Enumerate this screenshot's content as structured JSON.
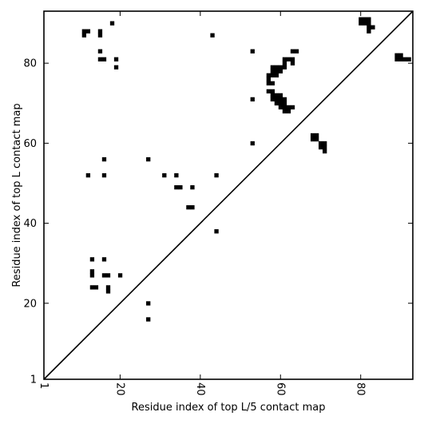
{
  "chart_data": {
    "type": "heatmap",
    "title": "",
    "xlabel": "Residue index of top L/5 contact map",
    "ylabel": "Residue index of top L contact map",
    "xlim": [
      1,
      93
    ],
    "ylim": [
      1,
      93
    ],
    "x_ticks": [
      1,
      20,
      40,
      60,
      80
    ],
    "y_ticks": [
      1,
      20,
      40,
      60,
      80
    ],
    "diagonal": true,
    "mark_color": "#000000",
    "contacts": [
      [
        11,
        88
      ],
      [
        12,
        88
      ],
      [
        11,
        87
      ],
      [
        15,
        88
      ],
      [
        15,
        87
      ],
      [
        18,
        90
      ],
      [
        15,
        83
      ],
      [
        15,
        81
      ],
      [
        16,
        81
      ],
      [
        19,
        81
      ],
      [
        19,
        79
      ],
      [
        43,
        87
      ],
      [
        53,
        83
      ],
      [
        53,
        71
      ],
      [
        53,
        60
      ],
      [
        16,
        56
      ],
      [
        27,
        56
      ],
      [
        12,
        52
      ],
      [
        16,
        52
      ],
      [
        31,
        52
      ],
      [
        34,
        52
      ],
      [
        44,
        52
      ],
      [
        34,
        49
      ],
      [
        35,
        49
      ],
      [
        38,
        49
      ],
      [
        37,
        44
      ],
      [
        38,
        44
      ],
      [
        44,
        38
      ],
      [
        13,
        31
      ],
      [
        16,
        31
      ],
      [
        13,
        28
      ],
      [
        13,
        27
      ],
      [
        16,
        27
      ],
      [
        17,
        27
      ],
      [
        20,
        27
      ],
      [
        13,
        24
      ],
      [
        14,
        24
      ],
      [
        17,
        24
      ],
      [
        17,
        23
      ],
      [
        27,
        20
      ],
      [
        27,
        16
      ],
      [
        80,
        91
      ],
      [
        81,
        91
      ],
      [
        82,
        91
      ],
      [
        80,
        90
      ],
      [
        81,
        90
      ],
      [
        82,
        90
      ],
      [
        82,
        89
      ],
      [
        83,
        89
      ],
      [
        82,
        88
      ],
      [
        89,
        82
      ],
      [
        90,
        82
      ],
      [
        89,
        81
      ],
      [
        90,
        81
      ],
      [
        91,
        81
      ],
      [
        92,
        81
      ],
      [
        63,
        83
      ],
      [
        64,
        83
      ],
      [
        61,
        81
      ],
      [
        62,
        81
      ],
      [
        63,
        81
      ],
      [
        63,
        80
      ],
      [
        61,
        80
      ],
      [
        61,
        79
      ],
      [
        58,
        79
      ],
      [
        59,
        79
      ],
      [
        60,
        79
      ],
      [
        58,
        78
      ],
      [
        59,
        78
      ],
      [
        60,
        78
      ],
      [
        57,
        77
      ],
      [
        58,
        77
      ],
      [
        59,
        77
      ],
      [
        57,
        76
      ],
      [
        57,
        75
      ],
      [
        58,
        75
      ],
      [
        57,
        73
      ],
      [
        58,
        73
      ],
      [
        58,
        72
      ],
      [
        59,
        72
      ],
      [
        60,
        72
      ],
      [
        58,
        71
      ],
      [
        59,
        71
      ],
      [
        60,
        71
      ],
      [
        61,
        71
      ],
      [
        59,
        70
      ],
      [
        60,
        70
      ],
      [
        61,
        70
      ],
      [
        60,
        69
      ],
      [
        61,
        69
      ],
      [
        62,
        69
      ],
      [
        63,
        69
      ],
      [
        61,
        68
      ],
      [
        62,
        68
      ],
      [
        68,
        62
      ],
      [
        69,
        62
      ],
      [
        68,
        61
      ],
      [
        69,
        61
      ],
      [
        70,
        60
      ],
      [
        71,
        60
      ],
      [
        70,
        59
      ],
      [
        71,
        59
      ],
      [
        71,
        58
      ]
    ]
  }
}
